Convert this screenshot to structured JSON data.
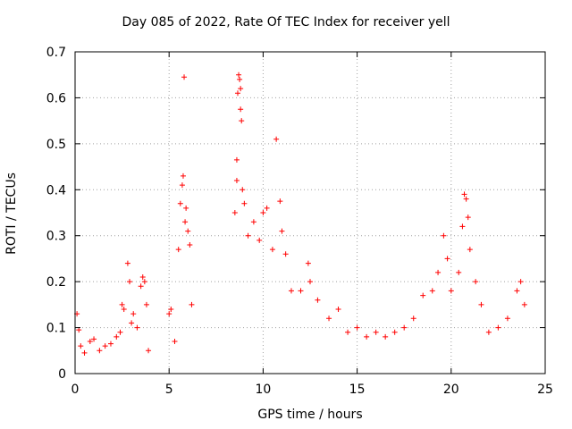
{
  "chart_data": {
    "type": "scatter",
    "title": "Day 085 of 2022, Rate Of TEC Index for receiver yell",
    "xlabel": "GPS time / hours",
    "ylabel": "ROTI / TECUs",
    "xlim": [
      0,
      25
    ],
    "ylim": [
      0,
      0.7
    ],
    "x_ticks": [
      0,
      5,
      10,
      15,
      20,
      25
    ],
    "y_ticks": [
      0,
      0.1,
      0.2,
      0.3,
      0.4,
      0.5,
      0.6,
      0.7
    ],
    "x_tick_labels": [
      "0",
      "5",
      "10",
      "15",
      "20",
      "25"
    ],
    "y_tick_labels": [
      "0",
      "0.1",
      "0.2",
      "0.3",
      "0.4",
      "0.5",
      "0.6",
      "0.7"
    ],
    "grid": true,
    "marker": "+",
    "color": "#ff0000",
    "series": [
      {
        "name": "ROTI",
        "points": [
          [
            0.1,
            0.13
          ],
          [
            0.2,
            0.095
          ],
          [
            0.3,
            0.06
          ],
          [
            0.5,
            0.045
          ],
          [
            0.8,
            0.07
          ],
          [
            1.0,
            0.075
          ],
          [
            1.3,
            0.05
          ],
          [
            1.6,
            0.06
          ],
          [
            1.9,
            0.065
          ],
          [
            2.2,
            0.08
          ],
          [
            2.4,
            0.09
          ],
          [
            2.5,
            0.15
          ],
          [
            2.6,
            0.14
          ],
          [
            2.8,
            0.24
          ],
          [
            2.9,
            0.2
          ],
          [
            3.0,
            0.11
          ],
          [
            3.1,
            0.13
          ],
          [
            3.3,
            0.1
          ],
          [
            3.5,
            0.19
          ],
          [
            3.6,
            0.21
          ],
          [
            3.7,
            0.2
          ],
          [
            3.8,
            0.15
          ],
          [
            3.9,
            0.05
          ],
          [
            5.0,
            0.13
          ],
          [
            5.1,
            0.14
          ],
          [
            5.3,
            0.07
          ],
          [
            5.5,
            0.27
          ],
          [
            5.6,
            0.37
          ],
          [
            5.7,
            0.41
          ],
          [
            5.75,
            0.43
          ],
          [
            5.8,
            0.645
          ],
          [
            5.85,
            0.33
          ],
          [
            5.9,
            0.36
          ],
          [
            6.0,
            0.31
          ],
          [
            6.1,
            0.28
          ],
          [
            6.2,
            0.15
          ],
          [
            8.5,
            0.35
          ],
          [
            8.6,
            0.42
          ],
          [
            8.6,
            0.465
          ],
          [
            8.65,
            0.61
          ],
          [
            8.7,
            0.65
          ],
          [
            8.75,
            0.64
          ],
          [
            8.8,
            0.62
          ],
          [
            8.8,
            0.575
          ],
          [
            8.85,
            0.55
          ],
          [
            8.9,
            0.4
          ],
          [
            9.0,
            0.37
          ],
          [
            9.2,
            0.3
          ],
          [
            9.5,
            0.33
          ],
          [
            9.8,
            0.29
          ],
          [
            10.0,
            0.35
          ],
          [
            10.2,
            0.36
          ],
          [
            10.5,
            0.27
          ],
          [
            10.7,
            0.51
          ],
          [
            10.9,
            0.375
          ],
          [
            11.0,
            0.31
          ],
          [
            11.2,
            0.26
          ],
          [
            11.5,
            0.18
          ],
          [
            12.0,
            0.18
          ],
          [
            12.4,
            0.24
          ],
          [
            12.5,
            0.2
          ],
          [
            12.9,
            0.16
          ],
          [
            13.5,
            0.12
          ],
          [
            14.0,
            0.14
          ],
          [
            14.5,
            0.09
          ],
          [
            15.0,
            0.1
          ],
          [
            15.5,
            0.08
          ],
          [
            16.0,
            0.09
          ],
          [
            16.5,
            0.08
          ],
          [
            17.0,
            0.09
          ],
          [
            17.5,
            0.1
          ],
          [
            18.0,
            0.12
          ],
          [
            18.5,
            0.17
          ],
          [
            19.0,
            0.18
          ],
          [
            19.3,
            0.22
          ],
          [
            19.6,
            0.3
          ],
          [
            19.8,
            0.25
          ],
          [
            20.0,
            0.18
          ],
          [
            20.4,
            0.22
          ],
          [
            20.6,
            0.32
          ],
          [
            20.7,
            0.39
          ],
          [
            20.8,
            0.38
          ],
          [
            20.9,
            0.34
          ],
          [
            21.0,
            0.27
          ],
          [
            21.3,
            0.2
          ],
          [
            21.6,
            0.15
          ],
          [
            22.0,
            0.09
          ],
          [
            22.5,
            0.1
          ],
          [
            23.0,
            0.12
          ],
          [
            23.5,
            0.18
          ],
          [
            23.7,
            0.2
          ],
          [
            23.9,
            0.15
          ]
        ]
      }
    ]
  }
}
